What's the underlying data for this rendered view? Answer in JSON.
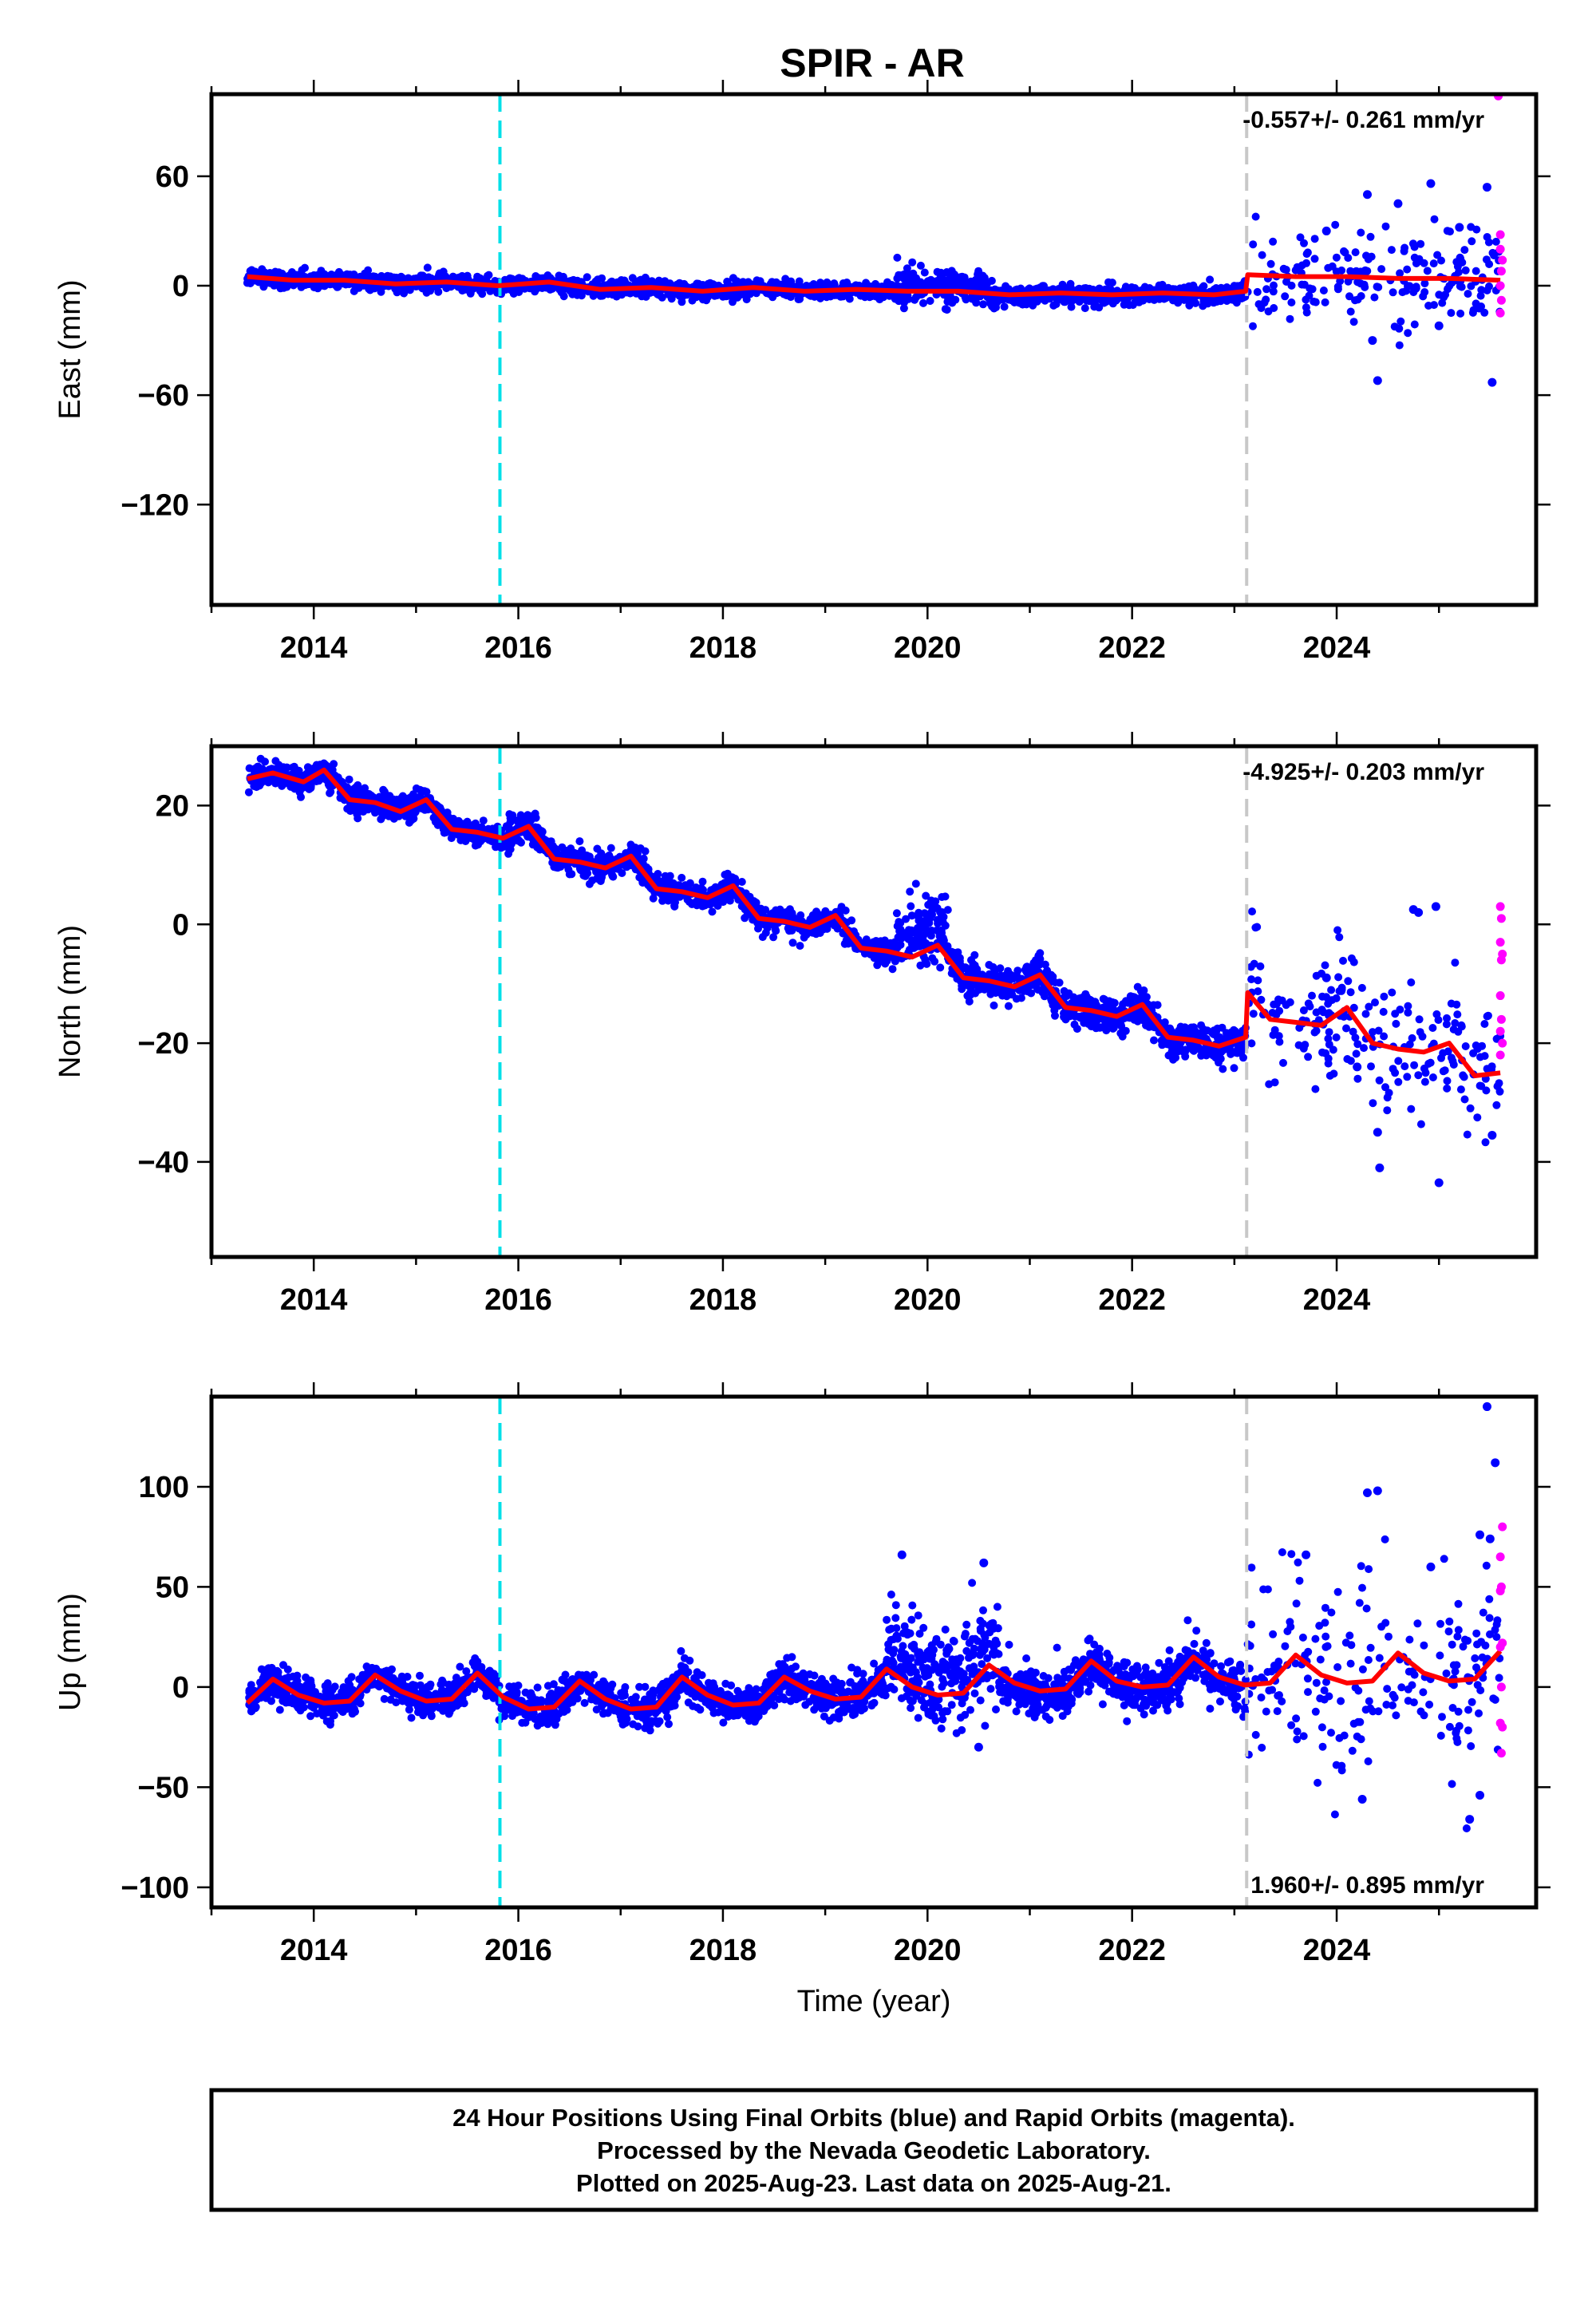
{
  "title": "SPIR - AR",
  "colors": {
    "final_orbits": "#0000ff",
    "rapid_orbits": "#ff00ff",
    "model": "#ff0000",
    "equipment_change": "#00e0e8",
    "earthquake": "#c8c8c8"
  },
  "chart_data": [
    {
      "type": "scatter",
      "component": "east",
      "ylabel": "East (mm)",
      "xlabel": "",
      "xlim": [
        2013.0,
        2025.95
      ],
      "ylim": [
        -175,
        105
      ],
      "yticks": [
        60,
        0,
        -60,
        -120
      ],
      "xticks": [
        2014,
        2016,
        2018,
        2020,
        2022,
        2024
      ],
      "rate": "-0.557+/- 0.261 mm/yr",
      "rate_position": "top-right",
      "markers": [
        {
          "kind": "equipment",
          "x": 2015.82
        },
        {
          "kind": "earthquake",
          "x": 2023.12
        }
      ],
      "model": [
        [
          2013.35,
          5
        ],
        [
          2013.8,
          3
        ],
        [
          2014.3,
          3
        ],
        [
          2014.8,
          1
        ],
        [
          2015.3,
          2
        ],
        [
          2015.8,
          0
        ],
        [
          2016.3,
          2
        ],
        [
          2016.8,
          -2
        ],
        [
          2017.3,
          -1
        ],
        [
          2017.8,
          -3
        ],
        [
          2018.3,
          -1
        ],
        [
          2018.8,
          -3
        ],
        [
          2019.3,
          -2
        ],
        [
          2019.8,
          -3
        ],
        [
          2020.3,
          -3
        ],
        [
          2020.8,
          -5
        ],
        [
          2021.3,
          -4
        ],
        [
          2021.8,
          -5
        ],
        [
          2022.3,
          -4
        ],
        [
          2022.8,
          -5
        ],
        [
          2023.11,
          -3
        ],
        [
          2023.13,
          6
        ],
        [
          2023.6,
          5
        ],
        [
          2024.1,
          5
        ],
        [
          2024.6,
          4
        ],
        [
          2025.1,
          4
        ],
        [
          2025.6,
          3
        ]
      ],
      "scatter": {
        "seed": 11,
        "count": 2400,
        "segments": [
          {
            "start": 2013.35,
            "end": 2019.7,
            "noise": 2.2
          },
          {
            "start": 2019.7,
            "end": 2020.6,
            "noise": 4.5,
            "offset": 4
          },
          {
            "start": 2020.6,
            "end": 2023.11,
            "noise": 2.6,
            "offset": -1
          },
          {
            "start": 2023.13,
            "end": 2025.6,
            "noise": 14,
            "sparse": true
          }
        ]
      },
      "outliers": [
        [
          2024.3,
          50
        ],
        [
          2024.4,
          -52
        ],
        [
          2024.6,
          45
        ],
        [
          2024.92,
          56
        ],
        [
          2025.2,
          32
        ],
        [
          2025.47,
          54
        ],
        [
          2025.52,
          -53
        ],
        [
          2024.35,
          -30
        ],
        [
          2025.0,
          -22
        ],
        [
          2023.9,
          30
        ]
      ],
      "rapid": [
        [
          2025.58,
          104
        ],
        [
          2025.6,
          28
        ],
        [
          2025.6,
          20
        ],
        [
          2025.61,
          8
        ],
        [
          2025.6,
          0
        ],
        [
          2025.61,
          -8
        ],
        [
          2025.6,
          -15
        ],
        [
          2025.62,
          14
        ]
      ]
    },
    {
      "type": "scatter",
      "component": "north",
      "ylabel": "North (mm)",
      "xlabel": "",
      "xlim": [
        2013.0,
        2025.95
      ],
      "ylim": [
        -56,
        30
      ],
      "yticks": [
        20,
        0,
        -20,
        -40
      ],
      "xticks": [
        2014,
        2016,
        2018,
        2020,
        2022,
        2024
      ],
      "rate": "-4.925+/- 0.203 mm/yr",
      "rate_position": "top-right",
      "markers": [
        {
          "kind": "equipment",
          "x": 2015.82
        },
        {
          "kind": "earthquake",
          "x": 2023.12
        }
      ],
      "model": [
        [
          2013.35,
          24.5
        ],
        [
          2013.6,
          25.5
        ],
        [
          2013.9,
          24
        ],
        [
          2014.1,
          26
        ],
        [
          2014.35,
          21
        ],
        [
          2014.6,
          20.5
        ],
        [
          2014.85,
          19
        ],
        [
          2015.1,
          21
        ],
        [
          2015.35,
          16
        ],
        [
          2015.6,
          15.5
        ],
        [
          2015.85,
          14.5
        ],
        [
          2016.1,
          16.5
        ],
        [
          2016.35,
          11
        ],
        [
          2016.6,
          10.5
        ],
        [
          2016.85,
          9.5
        ],
        [
          2017.1,
          11.5
        ],
        [
          2017.35,
          6
        ],
        [
          2017.6,
          5.5
        ],
        [
          2017.85,
          4.5
        ],
        [
          2018.1,
          6.5
        ],
        [
          2018.35,
          1
        ],
        [
          2018.6,
          0.5
        ],
        [
          2018.85,
          -0.5
        ],
        [
          2019.1,
          1.5
        ],
        [
          2019.35,
          -4
        ],
        [
          2019.6,
          -4.5
        ],
        [
          2019.85,
          -5.5
        ],
        [
          2020.1,
          -3.5
        ],
        [
          2020.35,
          -9
        ],
        [
          2020.6,
          -9.5
        ],
        [
          2020.85,
          -10.5
        ],
        [
          2021.1,
          -8.5
        ],
        [
          2021.35,
          -14
        ],
        [
          2021.6,
          -14.5
        ],
        [
          2021.85,
          -15.5
        ],
        [
          2022.1,
          -13.5
        ],
        [
          2022.35,
          -19
        ],
        [
          2022.6,
          -19.5
        ],
        [
          2022.85,
          -20.5
        ],
        [
          2023.11,
          -19
        ],
        [
          2023.13,
          -11.5
        ],
        [
          2023.35,
          -16
        ],
        [
          2023.6,
          -16.5
        ],
        [
          2023.85,
          -17
        ],
        [
          2024.1,
          -14
        ],
        [
          2024.35,
          -20
        ],
        [
          2024.6,
          -21
        ],
        [
          2024.85,
          -21.5
        ],
        [
          2025.1,
          -20
        ],
        [
          2025.35,
          -25.5
        ],
        [
          2025.6,
          -25
        ]
      ],
      "scatter": {
        "seed": 23,
        "count": 2600,
        "segments": [
          {
            "start": 2013.35,
            "end": 2019.7,
            "noise": 1.1
          },
          {
            "start": 2019.7,
            "end": 2020.2,
            "noise": 2.5,
            "offset": 5
          },
          {
            "start": 2020.2,
            "end": 2023.11,
            "noise": 1.4
          },
          {
            "start": 2023.13,
            "end": 2025.6,
            "noise": 5.5,
            "sparse": true
          }
        ]
      },
      "outliers": [
        [
          2024.4,
          -35
        ],
        [
          2024.42,
          -41
        ],
        [
          2025.0,
          -43.5
        ],
        [
          2025.52,
          -35.5
        ],
        [
          2024.97,
          3
        ],
        [
          2024.8,
          2
        ],
        [
          2024.75,
          2.5
        ],
        [
          2023.9,
          -9
        ],
        [
          2024.2,
          -24
        ]
      ],
      "rapid": [
        [
          2025.6,
          3
        ],
        [
          2025.61,
          1
        ],
        [
          2025.6,
          -3
        ],
        [
          2025.62,
          -5
        ],
        [
          2025.61,
          -6
        ],
        [
          2025.6,
          -12
        ],
        [
          2025.61,
          -16
        ],
        [
          2025.6,
          -18
        ],
        [
          2025.62,
          -20
        ],
        [
          2025.6,
          -22
        ]
      ]
    },
    {
      "type": "scatter",
      "component": "up",
      "ylabel": "Up (mm)",
      "xlabel": "Time (year)",
      "xlim": [
        2013.0,
        2025.95
      ],
      "ylim": [
        -110,
        145
      ],
      "yticks": [
        100,
        50,
        0,
        -50,
        -100
      ],
      "xticks": [
        2014,
        2016,
        2018,
        2020,
        2022,
        2024
      ],
      "rate": "1.960+/- 0.895 mm/yr",
      "rate_position": "bottom-right",
      "markers": [
        {
          "kind": "equipment",
          "x": 2015.82
        },
        {
          "kind": "earthquake",
          "x": 2023.12
        }
      ],
      "model": [
        [
          2013.35,
          -8
        ],
        [
          2013.6,
          4
        ],
        [
          2013.85,
          -4
        ],
        [
          2014.1,
          -8
        ],
        [
          2014.35,
          -7
        ],
        [
          2014.6,
          6
        ],
        [
          2014.85,
          -2
        ],
        [
          2015.1,
          -7
        ],
        [
          2015.35,
          -6
        ],
        [
          2015.6,
          7
        ],
        [
          2015.85,
          -5
        ],
        [
          2016.1,
          -11
        ],
        [
          2016.35,
          -10
        ],
        [
          2016.6,
          3
        ],
        [
          2016.85,
          -6
        ],
        [
          2017.1,
          -11
        ],
        [
          2017.35,
          -10
        ],
        [
          2017.6,
          5
        ],
        [
          2017.85,
          -4
        ],
        [
          2018.1,
          -9
        ],
        [
          2018.35,
          -8
        ],
        [
          2018.6,
          5
        ],
        [
          2018.85,
          -2
        ],
        [
          2019.1,
          -6
        ],
        [
          2019.35,
          -5
        ],
        [
          2019.6,
          9
        ],
        [
          2019.85,
          0
        ],
        [
          2020.1,
          -4
        ],
        [
          2020.35,
          -3
        ],
        [
          2020.6,
          11
        ],
        [
          2020.85,
          2
        ],
        [
          2021.1,
          -2
        ],
        [
          2021.35,
          -1
        ],
        [
          2021.6,
          13
        ],
        [
          2021.85,
          3
        ],
        [
          2022.1,
          0
        ],
        [
          2022.35,
          1
        ],
        [
          2022.6,
          15
        ],
        [
          2022.85,
          5
        ],
        [
          2023.1,
          1
        ],
        [
          2023.35,
          2
        ],
        [
          2023.6,
          16
        ],
        [
          2023.85,
          6
        ],
        [
          2024.1,
          2
        ],
        [
          2024.35,
          3
        ],
        [
          2024.6,
          17
        ],
        [
          2024.85,
          7
        ],
        [
          2025.1,
          3
        ],
        [
          2025.35,
          4
        ],
        [
          2025.6,
          18
        ]
      ],
      "scatter": {
        "seed": 37,
        "count": 2600,
        "segments": [
          {
            "start": 2013.35,
            "end": 2019.6,
            "noise": 4.5
          },
          {
            "start": 2019.6,
            "end": 2020.7,
            "noise": 12,
            "offset": 12
          },
          {
            "start": 2020.7,
            "end": 2023.11,
            "noise": 6,
            "offset": -3
          },
          {
            "start": 2023.13,
            "end": 2025.6,
            "noise": 22,
            "sparse": true
          }
        ]
      },
      "outliers": [
        [
          2019.75,
          66
        ],
        [
          2020.55,
          62
        ],
        [
          2020.5,
          -30
        ],
        [
          2023.7,
          66
        ],
        [
          2024.3,
          97
        ],
        [
          2024.4,
          98
        ],
        [
          2024.25,
          -56
        ],
        [
          2024.92,
          60
        ],
        [
          2025.3,
          -66
        ],
        [
          2025.47,
          140
        ],
        [
          2025.55,
          112
        ],
        [
          2025.4,
          76
        ],
        [
          2025.5,
          74
        ],
        [
          2025.4,
          -54
        ]
      ],
      "rapid": [
        [
          2025.62,
          80
        ],
        [
          2025.6,
          65
        ],
        [
          2025.61,
          50
        ],
        [
          2025.6,
          48
        ],
        [
          2025.62,
          22
        ],
        [
          2025.6,
          20
        ],
        [
          2025.61,
          0
        ],
        [
          2025.6,
          -18
        ],
        [
          2025.62,
          -20
        ],
        [
          2025.61,
          -33
        ]
      ]
    }
  ],
  "footer": {
    "line1": "24 Hour Positions Using Final Orbits (blue) and Rapid Orbits (magenta).",
    "line2": "Processed by the Nevada Geodetic Laboratory.",
    "line3": "Plotted on 2025-Aug-23. Last data on 2025-Aug-21."
  }
}
